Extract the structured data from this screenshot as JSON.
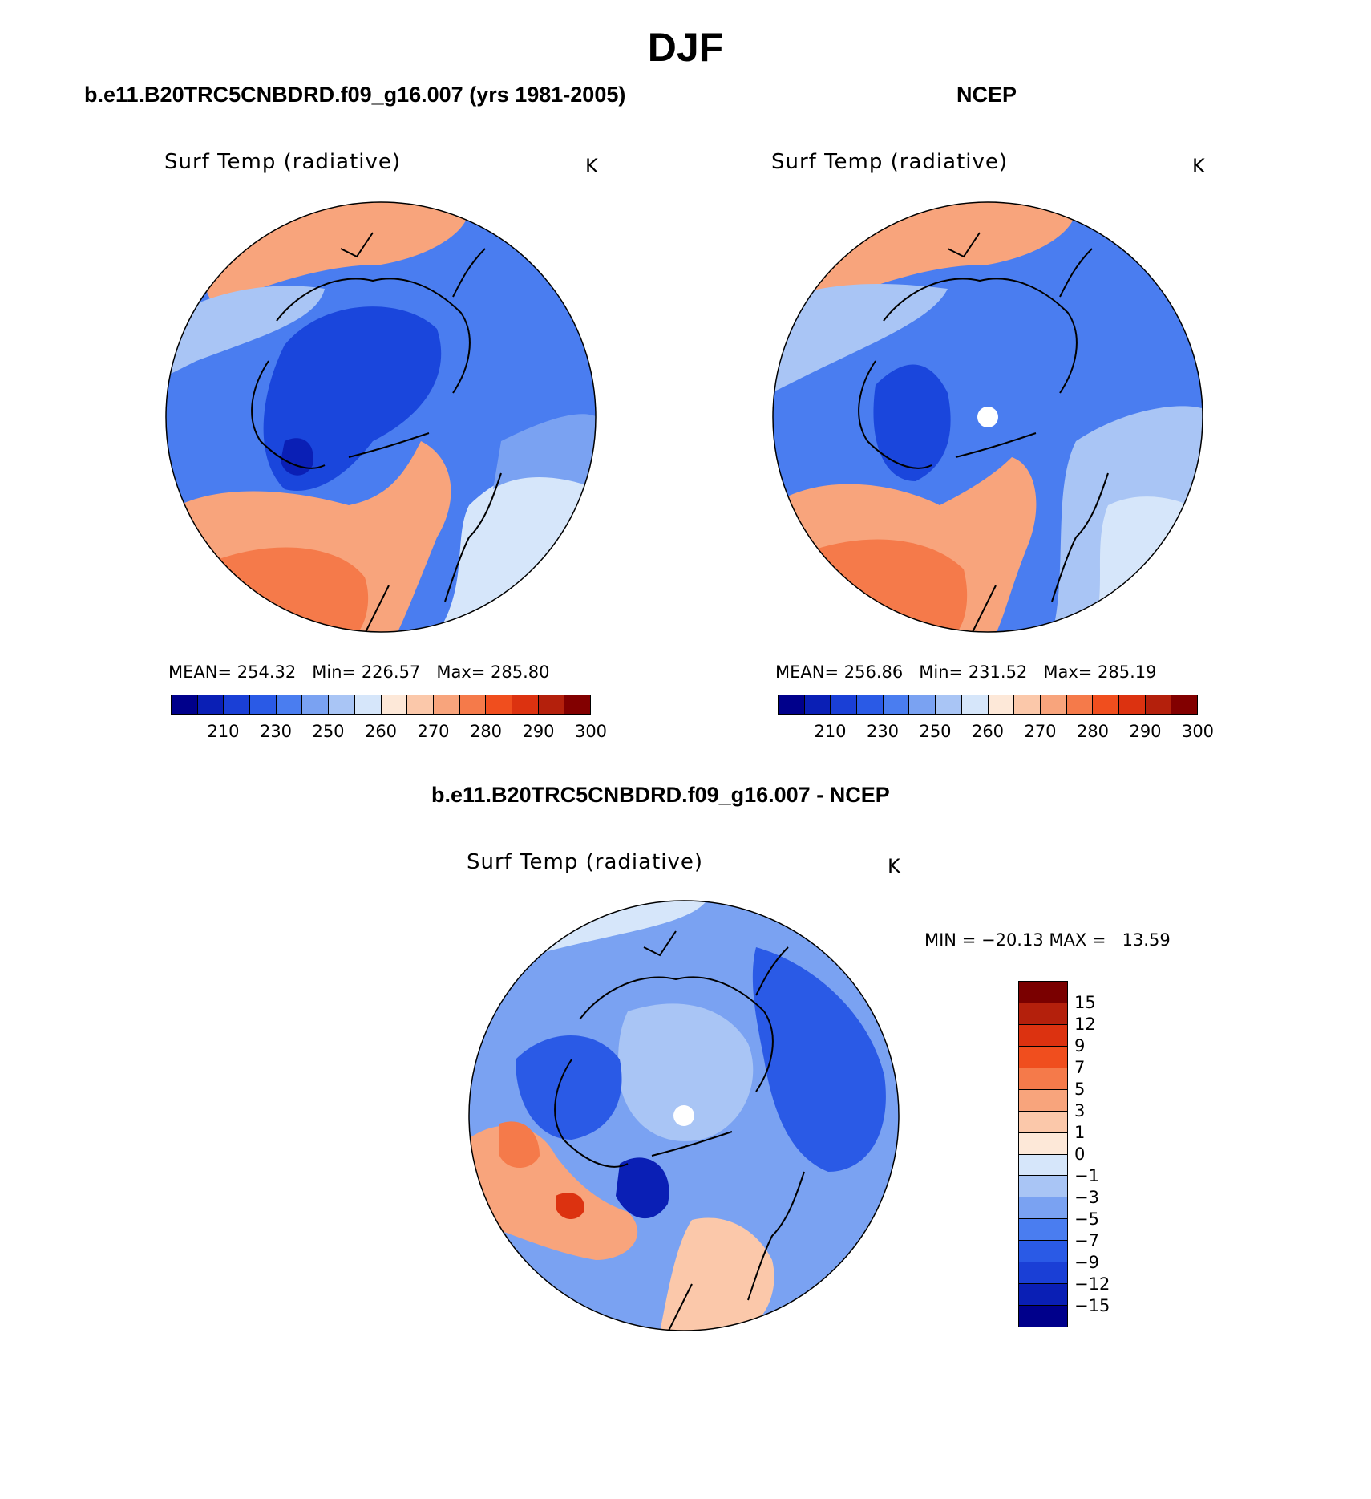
{
  "figure": {
    "season": "DJF"
  },
  "panels": {
    "model": {
      "title": "b.e11.B20TRC5CNBDRD.f09_g16.007 (yrs 1981-2005)",
      "variable": "Surf Temp (radiative)",
      "units": "K",
      "mean_label": "MEAN=",
      "mean": "254.32",
      "min_label": "Min=",
      "min": "226.57",
      "max_label": "Max=",
      "max": "285.80"
    },
    "obs": {
      "title": "NCEP",
      "variable": "Surf Temp (radiative)",
      "units": "K",
      "mean_label": "MEAN=",
      "mean": "256.86",
      "min_label": "Min=",
      "min": "231.52",
      "max_label": "Max=",
      "max": "285.19"
    },
    "diff": {
      "title": "b.e11.B20TRC5CNBDRD.f09_g16.007 - NCEP",
      "variable": "Surf Temp (radiative)",
      "units": "K",
      "min_label": "MIN =",
      "min": "−20.13",
      "max_label": "MAX =",
      "max": "13.59"
    }
  },
  "colorbars": {
    "absolute": {
      "ticks": [
        "210",
        "230",
        "250",
        "260",
        "270",
        "280",
        "290",
        "300"
      ],
      "colors": [
        "#00008b",
        "#0a1fb5",
        "#1a3fd6",
        "#2a5ae6",
        "#4a7df0",
        "#7aa2f2",
        "#a9c5f5",
        "#d6e6fa",
        "#fde8d8",
        "#fbc8aa",
        "#f8a47c",
        "#f57a4a",
        "#f04e1e",
        "#dc3210",
        "#b4200c",
        "#820000"
      ]
    },
    "difference": {
      "ticks": [
        "15",
        "12",
        "9",
        "7",
        "5",
        "3",
        "1",
        "0",
        "−1",
        "−3",
        "−5",
        "−7",
        "−9",
        "−12",
        "−15"
      ],
      "colors": [
        "#7a0000",
        "#b4200c",
        "#dc3210",
        "#f04e1e",
        "#f57a4a",
        "#f8a47c",
        "#fbc8aa",
        "#fde8d8",
        "#d6e6fa",
        "#a9c5f5",
        "#7aa2f2",
        "#4a7df0",
        "#2a5ae6",
        "#1a3fd6",
        "#0a1fb5",
        "#00008b"
      ]
    }
  },
  "colors": {
    "cold": "#3a6ef0",
    "deep_cold": "#1a46dc",
    "warm": "#f8a47c",
    "hot": "#f57a4a"
  }
}
